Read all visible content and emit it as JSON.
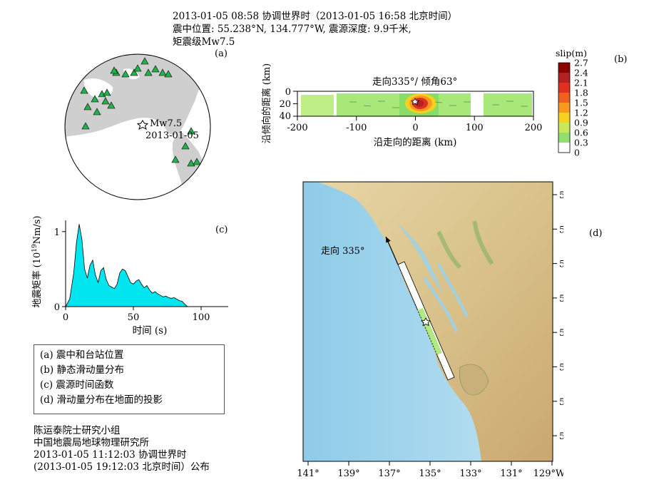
{
  "header": {
    "line1": "2013-01-05 08:58 协调世界时（2013-01-05 16:58 北京时间）",
    "line2": "震中位置: 55.238°N, 134.777°W, 震源深度: 9.9千米,",
    "line3": "矩震级Mw7.5"
  },
  "panel_a": {
    "label": "(a)",
    "event_label": "Mw7.5",
    "event_date": "2013-01-05"
  },
  "panel_b": {
    "label": "(b)",
    "title": "走向335°/ 倾角63°",
    "xlabel": "沿走向的距离 (km)",
    "ylabel": "沿倾向的距离 (km)",
    "x_ticks": [
      "-200",
      "-100",
      "0",
      "100",
      "200"
    ],
    "y_ticks": [
      "0",
      "20",
      "40"
    ],
    "colorbar_title": "slip(m)",
    "colorbar_ticks": [
      "2.7",
      "2.4",
      "2.1",
      "1.8",
      "1.5",
      "1.2",
      "0.9",
      "0.6",
      "0.3",
      "0"
    ],
    "colorbar_colors": [
      "#8b0000",
      "#b22222",
      "#e03020",
      "#f06020",
      "#f89a20",
      "#f8d020",
      "#c8e858",
      "#90e070",
      "#ffffff"
    ]
  },
  "panel_c": {
    "label": "(c)",
    "xlabel": "时间 (s)",
    "ylabel_main": "地震矩率 (10",
    "ylabel_sup": "19",
    "ylabel_tail": "Nm/s)",
    "x_ticks": [
      "0",
      "50",
      "100"
    ],
    "y_ticks": [
      "0",
      "1"
    ],
    "fill_color": "#00e5ee"
  },
  "panel_d": {
    "label": "(d)",
    "strike_label": "走向 335°",
    "lat_ticks": [
      "59°N",
      "58°",
      "57°",
      "56°",
      "55°",
      "54°",
      "53°",
      "52°"
    ],
    "lon_ticks": [
      "141°",
      "139°",
      "137°",
      "135°",
      "133°",
      "131°",
      "129°W"
    ]
  },
  "legend": {
    "items": [
      "(a) 震中和台站位置",
      "(b) 静态滑动量分布",
      "(c) 震源时间函数",
      "(d) 滑动量分布在地面的投影"
    ]
  },
  "credits": {
    "line1": "陈运泰院士研究小组",
    "line2": "中国地震局地球物理研究所",
    "line3": "2013-01-05 11:12:03 协调世界时",
    "line4": "(2013-01-05 19:12:03 北京时间）公布"
  },
  "chart_data": {
    "type": "area",
    "x": [
      0,
      3,
      6,
      8,
      10,
      12,
      14,
      16,
      18,
      20,
      22,
      24,
      26,
      28,
      30,
      32,
      34,
      36,
      38,
      40,
      42,
      44,
      46,
      48,
      50,
      52,
      54,
      56,
      58,
      60,
      62,
      64,
      66,
      68,
      70,
      72,
      74,
      76,
      78,
      80,
      82,
      84,
      86,
      88,
      90
    ],
    "values": [
      0,
      0.1,
      0.45,
      0.85,
      1.1,
      0.9,
      0.5,
      0.38,
      0.55,
      0.62,
      0.42,
      0.32,
      0.48,
      0.52,
      0.36,
      0.28,
      0.26,
      0.24,
      0.3,
      0.45,
      0.5,
      0.48,
      0.4,
      0.32,
      0.3,
      0.34,
      0.36,
      0.3,
      0.25,
      0.28,
      0.22,
      0.18,
      0.2,
      0.17,
      0.15,
      0.13,
      0.14,
      0.12,
      0.11,
      0.12,
      0.1,
      0.08,
      0.07,
      0.03,
      0
    ],
    "xlabel": "时间 (s)",
    "ylabel": "地震矩率 (10^19 Nm/s)",
    "xlim": [
      0,
      120
    ],
    "ylim": [
      0,
      1.15
    ]
  }
}
